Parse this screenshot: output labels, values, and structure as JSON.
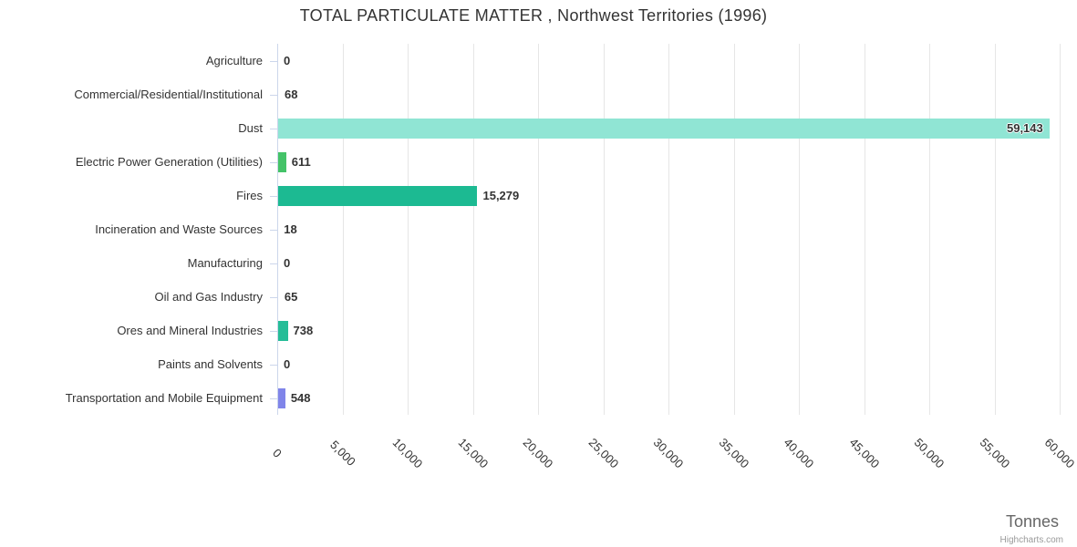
{
  "title": "TOTAL PARTICULATE MATTER , Northwest Territories (1996)",
  "axis_title": "Tonnes",
  "credits": "Highcharts.com",
  "colors": {
    "title_text": "#333333",
    "category_label": "#333333",
    "value_label": "#333333",
    "gridline": "#e6e6e6",
    "axis_line": "#ccd6eb",
    "tick": "#ccd6eb",
    "axis_title_text": "#666666",
    "credits_text": "#9a9a9a"
  },
  "chart_data": {
    "type": "bar",
    "orientation": "horizontal",
    "title": "TOTAL PARTICULATE MATTER , Northwest Territories (1996)",
    "categories": [
      "Agriculture",
      "Commercial/Residential/Institutional",
      "Dust",
      "Electric Power Generation (Utilities)",
      "Fires",
      "Incineration and Waste Sources",
      "Manufacturing",
      "Oil and Gas Industry",
      "Ores and Mineral Industries",
      "Paints and Solvents",
      "Transportation and Mobile Equipment"
    ],
    "values": [
      0,
      68,
      59143,
      611,
      15279,
      18,
      0,
      65,
      738,
      0,
      548
    ],
    "value_labels": [
      "0",
      "68",
      "59,143",
      "611",
      "15,279",
      "18",
      "0",
      "65",
      "738",
      "0",
      "548"
    ],
    "bar_colors": [
      null,
      null,
      "#90e5d4",
      "#44c368",
      "#1cba92",
      null,
      null,
      null,
      "#25bd97",
      null,
      "#8085e9"
    ],
    "xlabel": "Tonnes",
    "ylabel": "",
    "xlim": [
      0,
      60000
    ],
    "tick_step": 5000,
    "axis_ticks": [
      "0",
      "5,000",
      "10,000",
      "15,000",
      "20,000",
      "25,000",
      "30,000",
      "35,000",
      "40,000",
      "45,000",
      "50,000",
      "55,000",
      "60,000"
    ],
    "tick_label_rotation_deg": 45,
    "grid": true,
    "legend": false,
    "credits": "Highcharts.com"
  }
}
